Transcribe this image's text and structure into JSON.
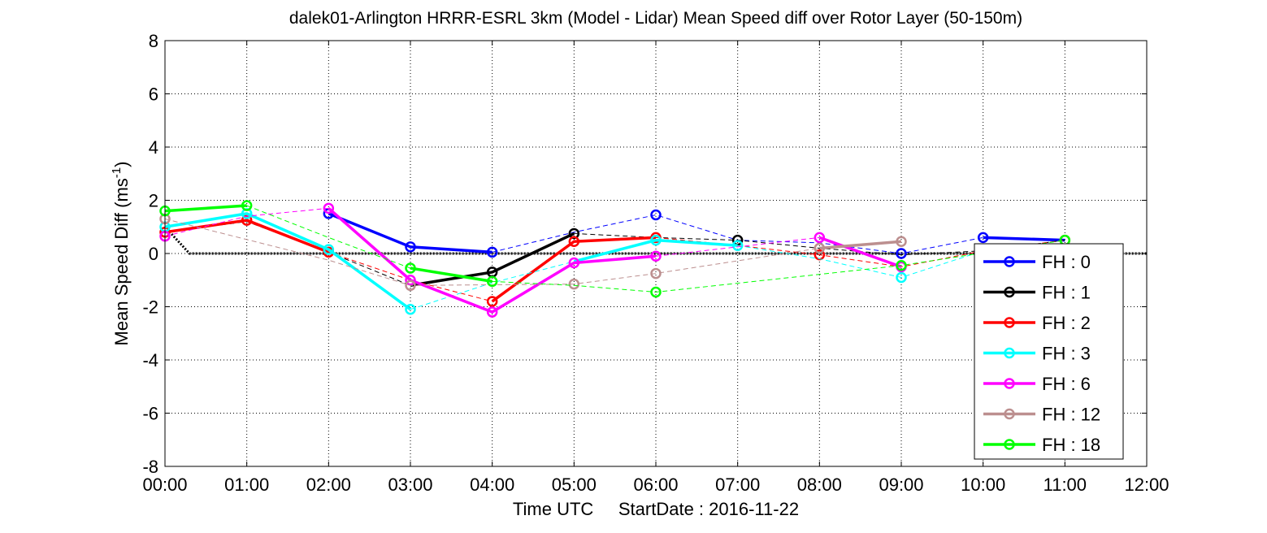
{
  "chart_data": {
    "type": "line",
    "title": "dalek01-Arlington HRRR-ESRL 3km (Model - Lidar) Mean Speed diff over Rotor Layer (50-150m)",
    "xlabel": "Time UTC     StartDate : 2016-11-22",
    "ylabel_main": "Mean Speed Diff (ms",
    "ylabel_sup": "-1",
    "ylabel_end": ")",
    "x_ticks": [
      "00:00",
      "01:00",
      "02:00",
      "03:00",
      "04:00",
      "05:00",
      "06:00",
      "07:00",
      "08:00",
      "09:00",
      "10:00",
      "11:00",
      "12:00"
    ],
    "xlim": [
      0,
      12
    ],
    "ylim": [
      -8,
      8
    ],
    "y_ticks": [
      8,
      6,
      4,
      2,
      0,
      -2,
      -4,
      -6,
      -8
    ],
    "grid": true,
    "legend_position": "lower-right",
    "zero_line": {
      "x": [
        0,
        0.3,
        12
      ],
      "y": [
        1.0,
        0,
        0
      ],
      "color": "#000000"
    },
    "series": [
      {
        "name": "FH : 0",
        "color": "#0000ff",
        "solid": {
          "x": [
            2,
            3,
            4
          ],
          "y": [
            1.5,
            0.25,
            0.05
          ]
        },
        "solid2": {
          "x": [
            10,
            11
          ],
          "y": [
            0.6,
            0.5
          ]
        },
        "dashed": {
          "x": [
            4,
            5,
            6,
            7,
            8,
            9,
            10
          ],
          "y": [
            0.05,
            0.8,
            1.45,
            0.5,
            0.4,
            0.0,
            0.6
          ]
        },
        "markers": {
          "x": [
            2,
            3,
            4,
            6,
            9,
            10
          ],
          "y": [
            1.5,
            0.25,
            0.05,
            1.45,
            0.0,
            0.6
          ]
        }
      },
      {
        "name": "FH : 1",
        "color": "#000000",
        "solid": {
          "x": [
            3,
            4,
            5
          ],
          "y": [
            -1.2,
            -0.7,
            0.75
          ]
        },
        "dashed": {
          "x": [
            0,
            1,
            2,
            3
          ],
          "y": [
            0.8,
            1.2,
            0.05,
            -1.2
          ]
        },
        "dashed2": {
          "x": [
            5,
            6,
            7,
            8,
            9,
            10,
            11
          ],
          "y": [
            0.75,
            0.6,
            0.5,
            0.2,
            -0.05,
            0.1,
            0.5
          ]
        },
        "markers": {
          "x": [
            4,
            5,
            7
          ],
          "y": [
            -0.7,
            0.75,
            0.5
          ]
        }
      },
      {
        "name": "FH : 2",
        "color": "#ff0000",
        "solid": {
          "x": [
            0,
            1,
            2
          ],
          "y": [
            0.8,
            1.25,
            0.05
          ]
        },
        "solid2": {
          "x": [
            4,
            5,
            6
          ],
          "y": [
            -1.8,
            0.45,
            0.6
          ]
        },
        "dashed": {
          "x": [
            2,
            3,
            4
          ],
          "y": [
            0.05,
            -1.0,
            -1.8
          ]
        },
        "dashed2": {
          "x": [
            6,
            7,
            8,
            9,
            10,
            11
          ],
          "y": [
            0.6,
            0.3,
            -0.05,
            -0.5,
            0.1,
            0.5
          ]
        },
        "markers": {
          "x": [
            0,
            1,
            2,
            4,
            5,
            6,
            8,
            11
          ],
          "y": [
            0.8,
            1.25,
            0.05,
            -1.8,
            0.45,
            0.6,
            -0.05,
            0.5
          ]
        }
      },
      {
        "name": "FH : 3",
        "color": "#00ffff",
        "solid": {
          "x": [
            0,
            1,
            2,
            3
          ],
          "y": [
            1.0,
            1.5,
            0.15,
            -2.1
          ]
        },
        "solid2": {
          "x": [
            5,
            6,
            7
          ],
          "y": [
            -0.3,
            0.5,
            0.3
          ]
        },
        "dashed": {
          "x": [
            3,
            4,
            5
          ],
          "y": [
            -2.1,
            -1.1,
            -0.3
          ]
        },
        "dashed2": {
          "x": [
            7,
            8,
            9,
            10
          ],
          "y": [
            0.3,
            -0.2,
            -0.9,
            0.1
          ]
        },
        "markers": {
          "x": [
            0,
            1,
            2,
            3,
            6,
            7,
            9
          ],
          "y": [
            1.0,
            1.5,
            0.15,
            -2.1,
            0.5,
            0.3,
            -0.9
          ]
        }
      },
      {
        "name": "FH : 6",
        "color": "#ff00ff",
        "solid": {
          "x": [
            2,
            3,
            4,
            5,
            6
          ],
          "y": [
            1.7,
            -1.0,
            -2.2,
            -0.35,
            -0.1
          ]
        },
        "solid2": {
          "x": [
            8,
            9
          ],
          "y": [
            0.6,
            -0.5
          ]
        },
        "dashed": {
          "x": [
            0,
            1,
            2
          ],
          "y": [
            0.65,
            1.4,
            1.7
          ]
        },
        "dashed2": {
          "x": [
            6,
            7,
            8
          ],
          "y": [
            -0.1,
            0.25,
            0.6
          ]
        },
        "markers": {
          "x": [
            0,
            2,
            3,
            4,
            5,
            6,
            8,
            9
          ],
          "y": [
            0.65,
            1.7,
            -1.0,
            -2.2,
            -0.35,
            -0.1,
            0.6,
            -0.5
          ]
        }
      },
      {
        "name": "FH : 12",
        "color": "#bc8f8f",
        "solid": {
          "x": [
            8,
            9
          ],
          "y": [
            0.2,
            0.45
          ]
        },
        "dashed": {
          "x": [
            0,
            2,
            3,
            5,
            6,
            8
          ],
          "y": [
            1.3,
            -0.25,
            -1.2,
            -1.15,
            -0.75,
            0.2
          ]
        },
        "markers": {
          "x": [
            0,
            3,
            5,
            6,
            8,
            9
          ],
          "y": [
            1.3,
            -1.2,
            -1.15,
            -0.75,
            0.2,
            0.45
          ]
        }
      },
      {
        "name": "FH : 18",
        "color": "#00ff00",
        "solid": {
          "x": [
            0,
            1
          ],
          "y": [
            1.6,
            1.8
          ]
        },
        "solid2": {
          "x": [
            3,
            4
          ],
          "y": [
            -0.55,
            -1.05
          ]
        },
        "dashed": {
          "x": [
            1,
            2,
            3
          ],
          "y": [
            1.8,
            0.6,
            -0.55
          ]
        },
        "dashed2": {
          "x": [
            4,
            5,
            6,
            9,
            11
          ],
          "y": [
            -1.05,
            -1.2,
            -1.45,
            -0.45,
            0.5
          ]
        },
        "markers": {
          "x": [
            0,
            1,
            3,
            4,
            6,
            9,
            11
          ],
          "y": [
            1.6,
            1.8,
            -0.55,
            -1.05,
            -1.45,
            -0.45,
            0.5
          ]
        }
      }
    ]
  }
}
